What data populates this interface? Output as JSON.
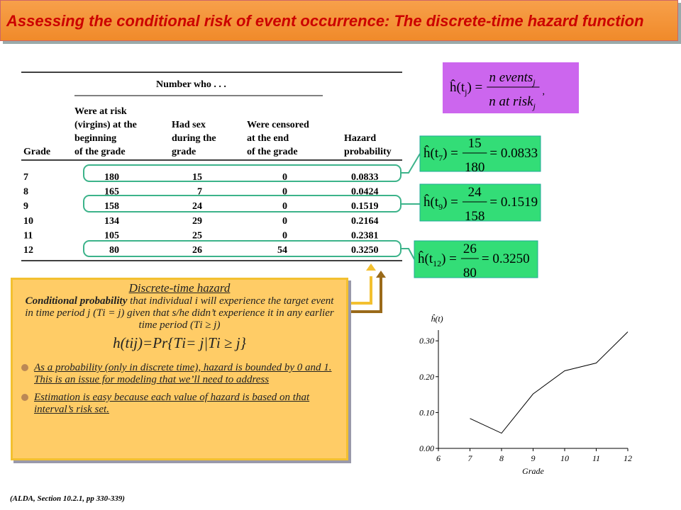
{
  "title": "Assessing the conditional risk of event occurrence: The discrete-time hazard function",
  "table": {
    "group_header": "Number who . . .",
    "headers": [
      [
        "Grade"
      ],
      [
        "Were at risk",
        "(virgins) at the",
        "beginning",
        "of the grade"
      ],
      [
        "Had sex",
        "during the",
        "grade"
      ],
      [
        "Were censored",
        "at the end",
        "of the grade"
      ],
      [
        "Hazard",
        "probability"
      ]
    ],
    "rows": [
      [
        "7",
        "180",
        "15",
        "0",
        "0.0833"
      ],
      [
        "8",
        "165",
        "7",
        "0",
        "0.0424"
      ],
      [
        "9",
        "158",
        "24",
        "0",
        "0.1519"
      ],
      [
        "10",
        "134",
        "29",
        "0",
        "0.2164"
      ],
      [
        "11",
        "105",
        "25",
        "0",
        "0.2381"
      ],
      [
        "12",
        "80",
        "26",
        "54",
        "0.3250"
      ]
    ]
  },
  "formulas": [
    {
      "lhs": "ĥ(t",
      "sub": "j",
      "close": ") =",
      "numerator": "n events",
      "numerator_sub": "j",
      "denominator": "n at risk",
      "denominator_sub": "j",
      "tail": ","
    },
    {
      "lhs": "ĥ(t",
      "sub": "7",
      "close": ") =",
      "numerator": "15",
      "denominator": "180",
      "result": "= 0.0833"
    },
    {
      "lhs": "ĥ(t",
      "sub": "9",
      "close": ") =",
      "numerator": "24",
      "denominator": "158",
      "result": "= 0.1519"
    },
    {
      "lhs": "ĥ(t",
      "sub": "12",
      "close": ") =",
      "numerator": "26",
      "denominator": "80",
      "result": "= 0.3250"
    }
  ],
  "box": {
    "heading": "Discrete-time hazard",
    "definition_bold": "Conditional probability",
    "definition": " that individual i will experience the target event in time period j (Τi = j) given that s/he didn’t experience it in any earlier time period (Τi ≥ j)",
    "equation": "h(tij)=Pr{Τi= j|Τi ≥ j}",
    "bullets": [
      "As a probability (only in discrete time), hazard is bounded by 0 and 1.  This is an issue for modeling that we’ll need to address",
      "Estimation is easy because each value of hazard is based on that interval’s risk set."
    ]
  },
  "footer": "(ALDA, Section 10.2.1, pp 330-339)",
  "chart_data": {
    "type": "line",
    "y_label": "ĥ(t)",
    "x_label": "Grade",
    "x": [
      7,
      8,
      9,
      10,
      11,
      12
    ],
    "series": [
      {
        "name": "Hazard",
        "color": "#000000",
        "values": [
          0.0833,
          0.0424,
          0.1519,
          0.2164,
          0.2381,
          0.325
        ]
      }
    ],
    "xlim": [
      6,
      12
    ],
    "xticks": [
      6,
      7,
      8,
      9,
      10,
      11,
      12
    ],
    "ylim": [
      0,
      0.33
    ],
    "yticks": [
      {
        "value": 0,
        "label": "0.00"
      },
      {
        "value": 0.1,
        "label": "0.10"
      },
      {
        "value": 0.2,
        "label": "0.20"
      },
      {
        "value": 0.3,
        "label": "0.30"
      }
    ]
  }
}
